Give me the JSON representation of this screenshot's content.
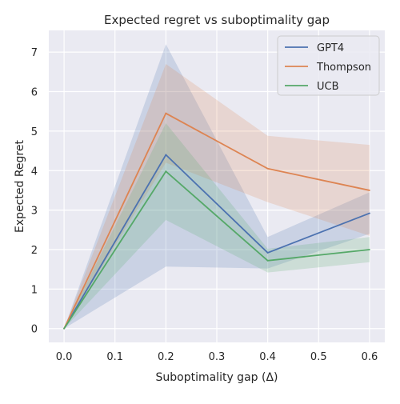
{
  "chart_data": {
    "type": "line",
    "title": "Expected regret vs suboptimality gap",
    "xlabel": "Suboptimality gap (Δ)",
    "ylabel": "Expected Regret",
    "x": [
      0.0,
      0.2,
      0.4,
      0.6
    ],
    "xlim": [
      -0.03,
      0.63
    ],
    "ylim": [
      -0.35,
      7.55
    ],
    "xticks": [
      0.0,
      0.1,
      0.2,
      0.3,
      0.4,
      0.5,
      0.6
    ],
    "xtick_labels": [
      "0.0",
      "0.1",
      "0.2",
      "0.3",
      "0.4",
      "0.5",
      "0.6"
    ],
    "yticks": [
      0,
      1,
      2,
      3,
      4,
      5,
      6,
      7
    ],
    "ytick_labels": [
      "0",
      "1",
      "2",
      "3",
      "4",
      "5",
      "6",
      "7"
    ],
    "grid": true,
    "legend_position": "top-right",
    "background_color": "#eaeaf2",
    "series": [
      {
        "name": "GPT4",
        "color": "#4c72b0",
        "values": [
          0.0,
          4.4,
          1.92,
          2.92
        ],
        "lower": [
          0.0,
          1.57,
          1.52,
          2.4
        ],
        "upper": [
          0.0,
          7.2,
          2.32,
          3.45
        ]
      },
      {
        "name": "Thompson",
        "color": "#dd8452",
        "values": [
          0.0,
          5.45,
          4.05,
          3.5
        ],
        "lower": [
          0.0,
          4.2,
          3.2,
          2.35
        ],
        "upper": [
          0.0,
          6.7,
          4.88,
          4.65
        ]
      },
      {
        "name": "UCB",
        "color": "#55a868",
        "values": [
          0.0,
          3.98,
          1.72,
          2.0
        ],
        "lower": [
          0.0,
          2.75,
          1.42,
          1.68
        ],
        "upper": [
          0.0,
          5.2,
          2.02,
          2.32
        ]
      }
    ]
  }
}
